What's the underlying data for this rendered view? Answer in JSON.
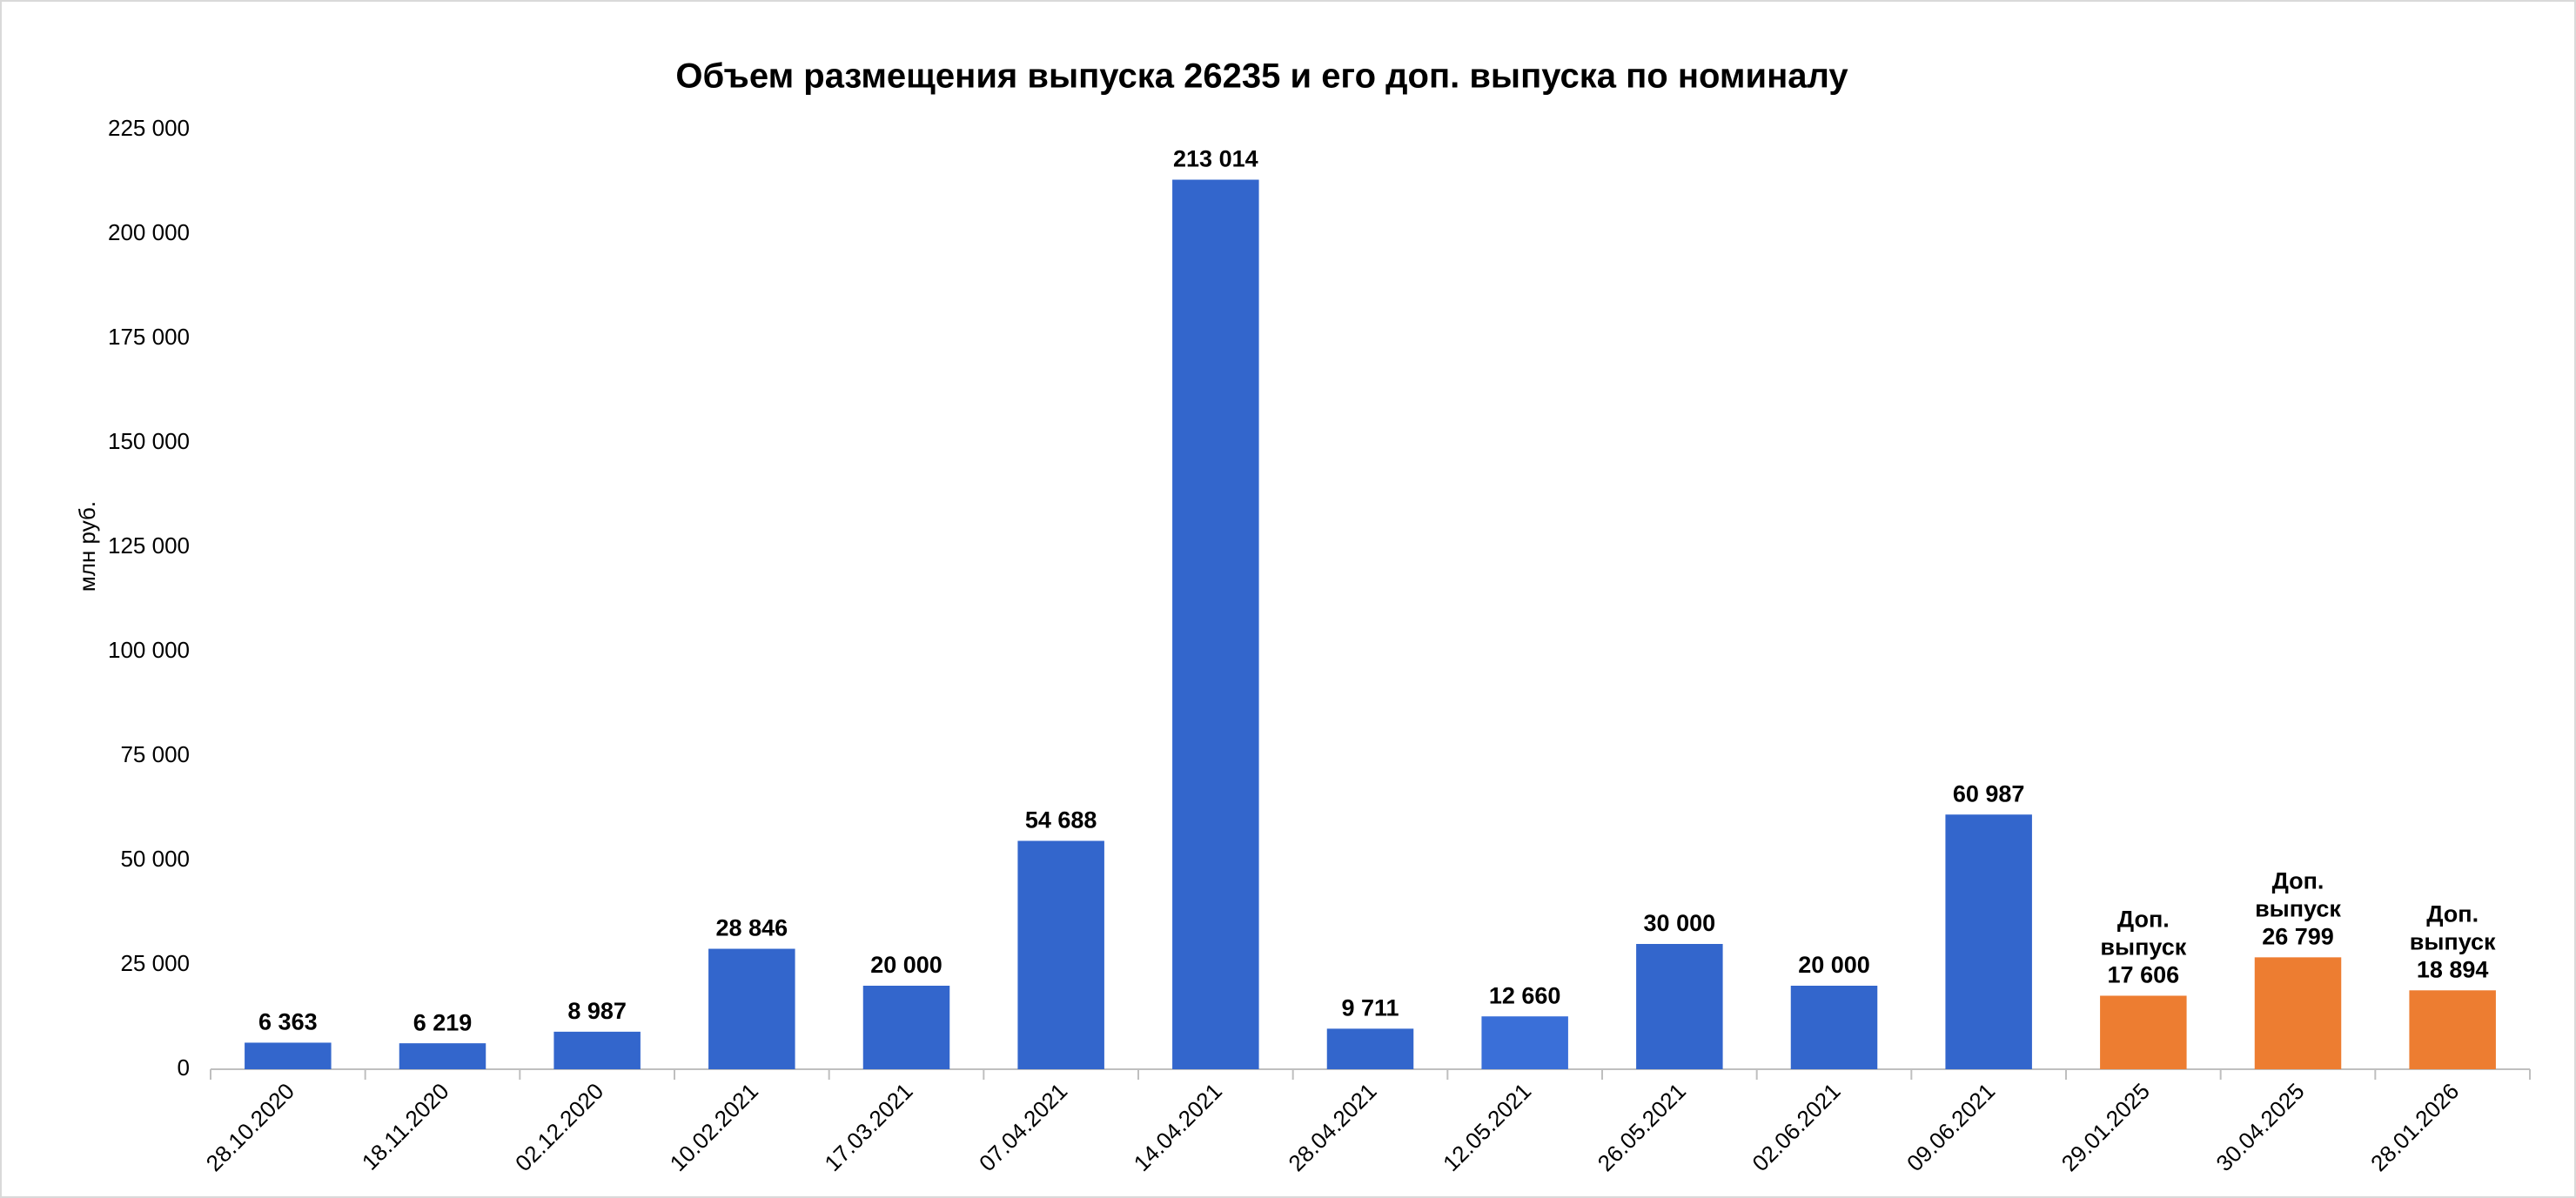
{
  "chart_data": {
    "type": "bar",
    "title": "Объем размещения выпуска 26235 и его доп. выпуска по номиналу",
    "y_label": "млн руб.",
    "categories": [
      "28.10.2020",
      "18.11.2020",
      "02.12.2020",
      "10.02.2021",
      "17.03.2021",
      "07.04.2021",
      "14.04.2021",
      "28.04.2021",
      "12.05.2021",
      "26.05.2021",
      "02.06.2021",
      "09.06.2021",
      "29.01.2025",
      "30.04.2025",
      "28.01.2026"
    ],
    "values": [
      6363,
      6219,
      8987,
      28846,
      20000,
      54688,
      213014,
      9711,
      12660,
      30000,
      20000,
      60987,
      17606,
      26799,
      18894
    ],
    "value_labels": [
      "6 363",
      "6 219",
      "8 987",
      "28 846",
      "20 000",
      "54 688",
      "213 014",
      "9 711",
      "12 660",
      "30 000",
      "20 000",
      "60 987",
      "17 606",
      "26 799",
      "18 894"
    ],
    "bar_notes": [
      null,
      null,
      null,
      null,
      null,
      null,
      null,
      null,
      null,
      null,
      null,
      null,
      [
        "Доп.",
        "выпуск"
      ],
      [
        "Доп.",
        "выпуск"
      ],
      [
        "Доп.",
        "выпуск"
      ]
    ],
    "colors": [
      "#3366cc",
      "#3366cc",
      "#3366cc",
      "#3366cc",
      "#3366cc",
      "#3366cc",
      "#3366cc",
      "#3366cc",
      "#3a6fd8",
      "#3366cc",
      "#3366cc",
      "#3366cc",
      "#ed7d31",
      "#ed7d31",
      "#ed7d31"
    ],
    "ylim": [
      0,
      225000
    ],
    "yticks": [
      0,
      {
        "value": 25000,
        "label": "25 000"
      },
      {
        "value": 50000,
        "label": "50 000"
      },
      {
        "value": 75000,
        "label": "75 000"
      },
      {
        "value": 100000,
        "label": "100 000"
      },
      {
        "value": 125000,
        "label": "125 000"
      },
      {
        "value": 150000,
        "label": "150 000"
      },
      {
        "value": 175000,
        "label": "175 000"
      },
      {
        "value": 200000,
        "label": "200 000"
      },
      {
        "value": 225000,
        "label": "225 000"
      }
    ],
    "grid": false
  }
}
